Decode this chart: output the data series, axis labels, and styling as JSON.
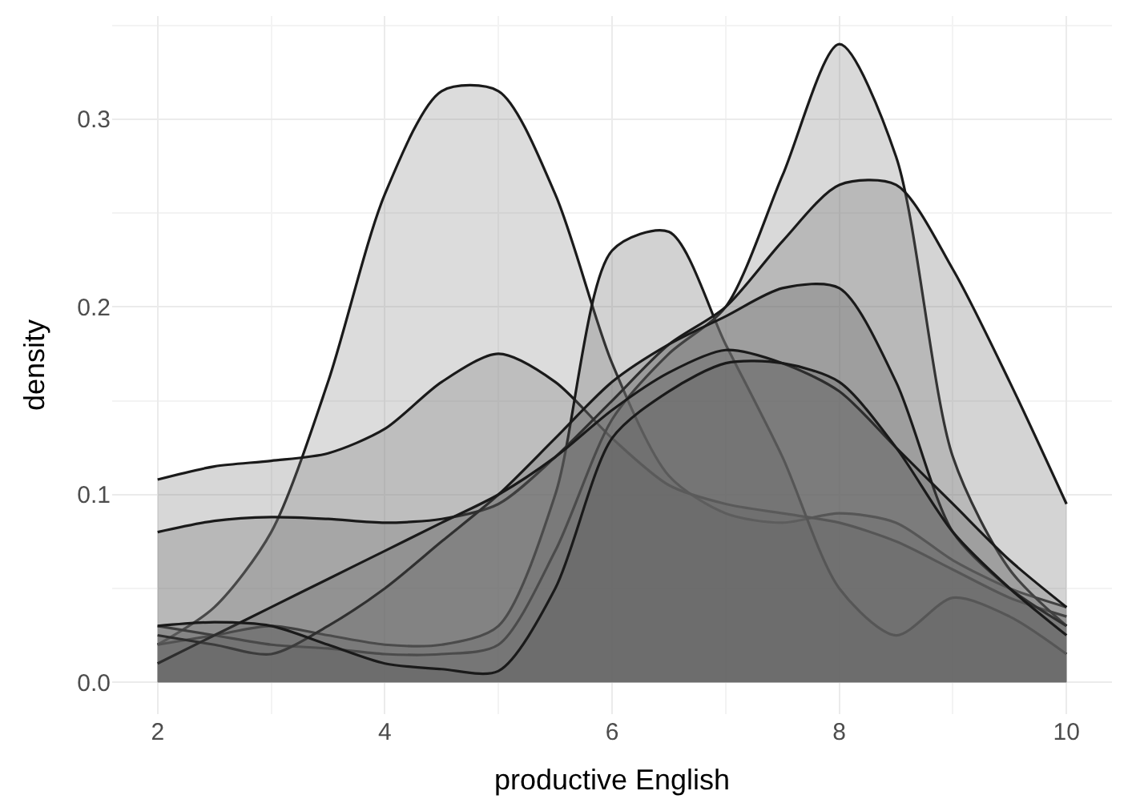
{
  "chart_data": {
    "type": "area",
    "xlabel": "productive English",
    "ylabel": "density",
    "x": [
      2,
      2.5,
      3,
      3.5,
      4,
      4.5,
      5,
      5.5,
      6,
      6.5,
      7,
      7.5,
      8,
      8.5,
      9,
      9.5,
      10
    ],
    "series": [
      {
        "color": "#8a8a8a",
        "values": [
          0.02,
          0.04,
          0.08,
          0.16,
          0.26,
          0.315,
          0.315,
          0.26,
          0.17,
          0.11,
          0.09,
          0.085,
          0.09,
          0.085,
          0.065,
          0.05,
          0.04
        ]
      },
      {
        "color": "#7a7a7a",
        "values": [
          0.108,
          0.115,
          0.118,
          0.122,
          0.135,
          0.16,
          0.175,
          0.16,
          0.13,
          0.105,
          0.095,
          0.09,
          0.085,
          0.075,
          0.06,
          0.045,
          0.035
        ]
      },
      {
        "color": "#6a6a6a",
        "values": [
          0.02,
          0.025,
          0.03,
          0.025,
          0.02,
          0.02,
          0.03,
          0.1,
          0.23,
          0.24,
          0.18,
          0.12,
          0.05,
          0.025,
          0.045,
          0.035,
          0.015
        ]
      },
      {
        "color": "#808080",
        "values": [
          0.03,
          0.025,
          0.02,
          0.018,
          0.015,
          0.015,
          0.02,
          0.07,
          0.14,
          0.175,
          0.2,
          0.27,
          0.34,
          0.28,
          0.12,
          0.06,
          0.03
        ]
      },
      {
        "color": "#707070",
        "values": [
          0.08,
          0.086,
          0.088,
          0.087,
          0.085,
          0.087,
          0.095,
          0.12,
          0.15,
          0.18,
          0.2,
          0.235,
          0.265,
          0.265,
          0.22,
          0.16,
          0.095
        ]
      },
      {
        "color": "#606060",
        "values": [
          0.025,
          0.02,
          0.015,
          0.03,
          0.05,
          0.075,
          0.1,
          0.13,
          0.16,
          0.18,
          0.195,
          0.21,
          0.21,
          0.16,
          0.08,
          0.05,
          0.03
        ]
      },
      {
        "color": "#656565",
        "values": [
          0.01,
          0.025,
          0.04,
          0.055,
          0.07,
          0.085,
          0.1,
          0.12,
          0.145,
          0.165,
          0.177,
          0.17,
          0.155,
          0.125,
          0.095,
          0.065,
          0.04
        ]
      },
      {
        "color": "#5a5a5a",
        "values": [
          0.03,
          0.032,
          0.03,
          0.02,
          0.01,
          0.007,
          0.006,
          0.05,
          0.13,
          0.155,
          0.17,
          0.17,
          0.16,
          0.125,
          0.08,
          0.05,
          0.025
        ]
      }
    ],
    "xlim": [
      1.6,
      10.4
    ],
    "xticks": [
      2,
      4,
      6,
      8,
      10
    ],
    "ylim": [
      -0.017,
      0.355
    ],
    "yticks": [
      {
        "value": 0,
        "label": "0.0"
      },
      0.1,
      0.2,
      0.3
    ],
    "grid": true,
    "line_style": "solid"
  }
}
